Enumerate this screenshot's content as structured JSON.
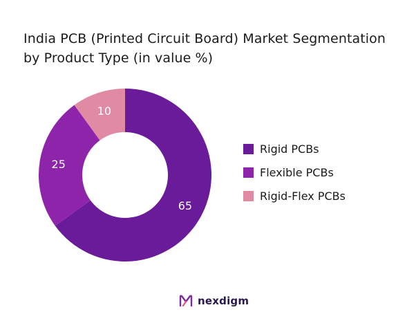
{
  "title_line1": "India PCB (Printed Circuit Board) Market Segmentation",
  "title_line2": "by Product Type (in value %)",
  "chart_data": {
    "type": "pie",
    "variant": "donut",
    "labels": [
      "Rigid PCBs",
      "Flexible PCBs",
      "Rigid-Flex PCBs"
    ],
    "values": [
      65,
      25,
      10
    ],
    "colors": [
      "#6a1b9a",
      "#8e24aa",
      "#e08aa3"
    ],
    "data_label_color": "#ffffff",
    "legend_position": "right"
  },
  "legend": [
    {
      "label": "Rigid PCBs",
      "color": "#6a1b9a"
    },
    {
      "label": "Flexible PCBs",
      "color": "#8e24aa"
    },
    {
      "label": "Rigid-Flex PCBs",
      "color": "#e08aa3"
    }
  ],
  "brand": {
    "name": "nexdigm",
    "logo_icon": "nexdigm-logo-icon"
  }
}
